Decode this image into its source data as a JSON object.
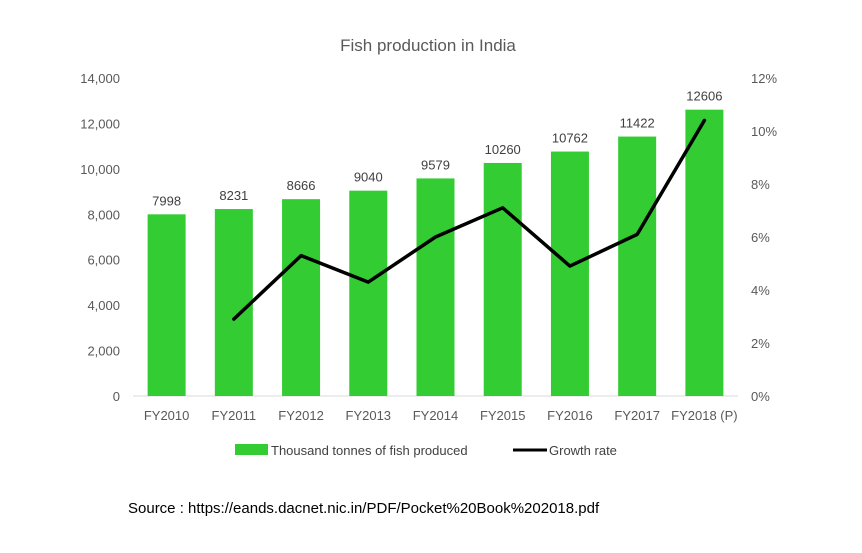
{
  "chart_data": {
    "type": "bar",
    "title": "Fish production in India",
    "categories": [
      "FY2010",
      "FY2011",
      "FY2012",
      "FY2013",
      "FY2014",
      "FY2015",
      "FY2016",
      "FY2017",
      "FY2018 (P)"
    ],
    "series": [
      {
        "name": "Thousand tonnes of fish produced",
        "type": "bar",
        "axis": "left",
        "color": "#33cc33",
        "values": [
          7998,
          8231,
          8666,
          9040,
          9579,
          10260,
          10762,
          11422,
          12606
        ],
        "data_labels": [
          "7998",
          "8231",
          "8666",
          "9040",
          "9579",
          "10260",
          "10762",
          "11422",
          "12606"
        ]
      },
      {
        "name": "Growth rate",
        "type": "line",
        "axis": "right",
        "color": "#000000",
        "values": [
          null,
          2.9,
          5.3,
          4.3,
          6.0,
          7.1,
          4.9,
          6.1,
          10.4
        ]
      }
    ],
    "y_left": {
      "min": 0,
      "max": 14000,
      "ticks": [
        "0",
        "2,000",
        "4,000",
        "6,000",
        "8,000",
        "10,000",
        "12,000",
        "14,000"
      ]
    },
    "y_right": {
      "min": 0,
      "max": 12,
      "ticks": [
        "0%",
        "2%",
        "4%",
        "6%",
        "8%",
        "10%",
        "12%"
      ]
    },
    "grid": false,
    "legend_position": "bottom"
  },
  "source_text": "Source : https://eands.dacnet.nic.in/PDF/Pocket%20Book%202018.pdf"
}
